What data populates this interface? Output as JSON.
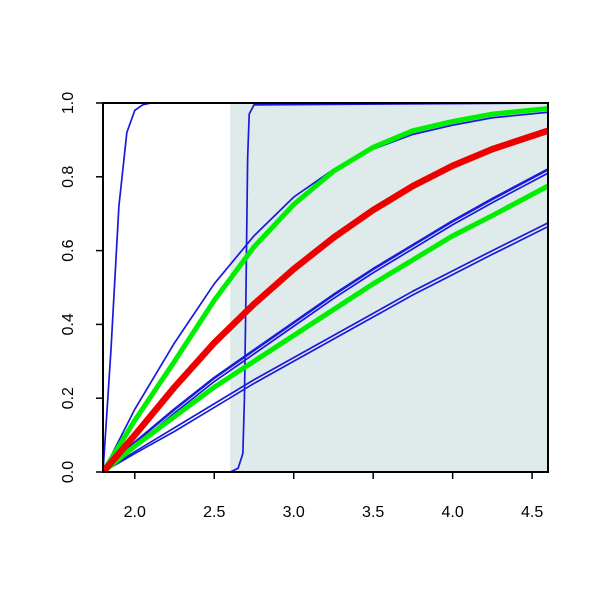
{
  "chart_data": {
    "type": "line",
    "title": "",
    "xlabel": "",
    "ylabel": "",
    "xlim": [
      1.8,
      4.6
    ],
    "ylim": [
      0,
      1
    ],
    "x_ticks": [
      2.0,
      2.5,
      3.0,
      3.5,
      4.0,
      4.5
    ],
    "x_tick_labels": [
      "2.0",
      "2.5",
      "3.0",
      "3.5",
      "4.0",
      "4.5"
    ],
    "y_ticks": [
      0.0,
      0.2,
      0.4,
      0.6,
      0.8,
      1.0
    ],
    "y_tick_labels": [
      "0.0",
      "0.2",
      "0.4",
      "0.6",
      "0.8",
      "1.0"
    ],
    "grid": false,
    "legend": "none",
    "shaded_region": {
      "x_from": 2.6,
      "x_to": 4.6,
      "color": "#dfeaea"
    },
    "series": [
      {
        "color": "#1a1adb",
        "weight": "thin",
        "x": [
          1.8,
          1.85,
          1.9,
          1.95,
          2.0,
          2.05,
          2.1,
          2.2,
          2.4,
          4.6
        ],
        "y": [
          0.0,
          0.33,
          0.72,
          0.92,
          0.98,
          0.995,
          1.0,
          1.0,
          1.0,
          1.0
        ]
      },
      {
        "color": "#1a1adb",
        "weight": "thin",
        "x": [
          1.8,
          2.6,
          2.65,
          2.68,
          2.69,
          2.7,
          2.71,
          2.72,
          2.75,
          4.6
        ],
        "y": [
          0.0,
          0.0,
          0.01,
          0.05,
          0.2,
          0.5,
          0.85,
          0.97,
          0.995,
          1.0
        ]
      },
      {
        "color": "#1a1adb",
        "weight": "thin",
        "x": [
          1.8,
          2.0,
          2.25,
          2.5,
          2.75,
          3.0,
          3.25,
          3.5,
          3.75,
          4.0,
          4.25,
          4.6
        ],
        "y": [
          0.0,
          0.17,
          0.35,
          0.51,
          0.64,
          0.745,
          0.82,
          0.875,
          0.915,
          0.94,
          0.96,
          0.975
        ]
      },
      {
        "color": "#1a1adb",
        "weight": "medium",
        "x": [
          1.8,
          2.0,
          2.25,
          2.5,
          2.75,
          3.0,
          3.25,
          3.5,
          3.75,
          4.0,
          4.25,
          4.6
        ],
        "y": [
          0.0,
          0.08,
          0.17,
          0.255,
          0.33,
          0.405,
          0.48,
          0.55,
          0.615,
          0.68,
          0.74,
          0.82
        ]
      },
      {
        "color": "#1a1adb",
        "weight": "thin",
        "x": [
          1.8,
          2.0,
          2.25,
          2.5,
          2.75,
          3.0,
          3.25,
          3.5,
          3.75,
          4.0,
          4.25,
          4.6
        ],
        "y": [
          0.0,
          0.07,
          0.16,
          0.245,
          0.32,
          0.395,
          0.47,
          0.54,
          0.605,
          0.67,
          0.73,
          0.81
        ]
      },
      {
        "color": "#1a1adb",
        "weight": "thin",
        "x": [
          1.8,
          2.0,
          2.25,
          2.5,
          2.75,
          3.0,
          3.25,
          3.5,
          3.75,
          4.0,
          4.25,
          4.6
        ],
        "y": [
          0.0,
          0.055,
          0.12,
          0.185,
          0.25,
          0.31,
          0.37,
          0.43,
          0.49,
          0.545,
          0.6,
          0.675
        ]
      },
      {
        "color": "#1a1adb",
        "weight": "thin",
        "x": [
          1.8,
          2.0,
          2.25,
          2.5,
          2.75,
          3.0,
          3.25,
          3.5,
          3.75,
          4.0,
          4.25,
          4.6
        ],
        "y": [
          0.0,
          0.05,
          0.11,
          0.175,
          0.24,
          0.3,
          0.36,
          0.42,
          0.48,
          0.535,
          0.59,
          0.665
        ]
      },
      {
        "color": "#00ee00",
        "weight": "thick",
        "x": [
          1.8,
          2.0,
          2.25,
          2.5,
          2.75,
          3.0,
          3.25,
          3.5,
          3.75,
          4.0,
          4.25,
          4.6
        ],
        "y": [
          0.0,
          0.14,
          0.3,
          0.465,
          0.61,
          0.725,
          0.815,
          0.88,
          0.925,
          0.95,
          0.97,
          0.985
        ]
      },
      {
        "color": "#00ee00",
        "weight": "thick",
        "x": [
          1.8,
          2.0,
          2.25,
          2.5,
          2.75,
          3.0,
          3.25,
          3.5,
          3.75,
          4.0,
          4.25,
          4.6
        ],
        "y": [
          0.0,
          0.07,
          0.15,
          0.23,
          0.3,
          0.37,
          0.44,
          0.51,
          0.575,
          0.64,
          0.695,
          0.775
        ]
      },
      {
        "color": "#ee0000",
        "weight": "thickest",
        "x": [
          1.8,
          2.0,
          2.25,
          2.5,
          2.75,
          3.0,
          3.25,
          3.5,
          3.75,
          4.0,
          4.25,
          4.6
        ],
        "y": [
          0.0,
          0.1,
          0.23,
          0.35,
          0.455,
          0.55,
          0.635,
          0.71,
          0.775,
          0.83,
          0.875,
          0.925
        ]
      }
    ]
  }
}
